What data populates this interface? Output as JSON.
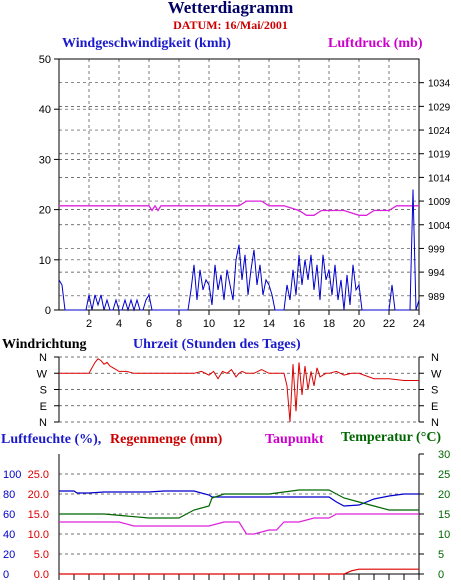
{
  "header": {
    "title": "Wetterdiagramm",
    "date": "DATUM: 16/Mai/2001"
  },
  "labels": {
    "wind": "Windgeschwindigkeit (kmh)",
    "pressure": "Luftdruck (mb)",
    "direction": "Windrichtung",
    "hours": "Uhrzeit (Stunden des Tages)",
    "humidity": "Luftfeuchte (%),",
    "rain": "Regenmenge (mm)",
    "dewpoint": "Taupunkt",
    "temperature": "Temperatur (°C)"
  },
  "colors": {
    "wind": "#0000cc",
    "pressure": "#dd22dd",
    "direction": "#dd0000",
    "humidity": "#0000cc",
    "rain": "#dd0000",
    "dewpoint": "#dd22dd",
    "temperature": "#006600"
  },
  "chart_data": [
    {
      "type": "line",
      "name": "wind_pressure",
      "x_ticks": [
        2,
        4,
        6,
        8,
        10,
        12,
        14,
        16,
        18,
        20,
        22,
        24
      ],
      "xlim": [
        0,
        24
      ],
      "y_left": {
        "lim": [
          0,
          50
        ],
        "ticks": [
          0,
          10,
          20,
          30,
          40,
          50
        ]
      },
      "y_right": {
        "lim": [
          986,
          1039
        ],
        "ticks": [
          989,
          994,
          999,
          1004,
          1009,
          1014,
          1019,
          1024,
          1029,
          1034
        ]
      },
      "grid": true,
      "series": [
        {
          "axis": "left",
          "x": [
            0,
            0.2,
            0.4,
            0.6,
            0.8,
            1,
            1.2,
            1.4,
            1.6,
            1.8,
            2,
            2.2,
            2.4,
            2.6,
            2.8,
            3,
            3.2,
            3.4,
            3.6,
            3.8,
            4,
            4.2,
            4.4,
            4.6,
            4.8,
            5,
            5.2,
            5.4,
            5.6,
            5.8,
            6,
            6.2,
            6.4,
            6.6,
            6.8,
            7,
            7.2,
            7.4,
            7.6,
            7.8,
            8,
            8.2,
            8.4,
            8.6,
            8.8,
            9,
            9.2,
            9.4,
            9.6,
            9.8,
            10,
            10.2,
            10.4,
            10.6,
            10.8,
            11,
            11.2,
            11.4,
            11.6,
            11.8,
            12,
            12.2,
            12.4,
            12.6,
            12.8,
            13,
            13.2,
            13.4,
            13.6,
            13.8,
            14,
            14.2,
            14.4,
            14.6,
            14.8,
            15,
            15.2,
            15.4,
            15.6,
            15.8,
            16,
            16.2,
            16.4,
            16.6,
            16.8,
            17,
            17.2,
            17.4,
            17.6,
            17.8,
            18,
            18.2,
            18.4,
            18.6,
            18.8,
            19,
            19.2,
            19.4,
            19.6,
            19.8,
            20,
            20.2,
            20.4,
            20.6,
            20.8,
            21,
            21.2,
            21.4,
            21.6,
            21.8,
            22,
            22.2,
            22.4,
            22.6,
            22.8,
            23,
            23.2,
            23.4,
            23.5,
            23.6,
            23.8,
            24
          ],
          "values": [
            6,
            5,
            0,
            0,
            0,
            0,
            0,
            0,
            0,
            0,
            3,
            0,
            3,
            1,
            3,
            0,
            2,
            0,
            0,
            2,
            0,
            0,
            2,
            0,
            2,
            0,
            2,
            0,
            0,
            2,
            3,
            0,
            0,
            0,
            0,
            0,
            0,
            0,
            0,
            0,
            0,
            0,
            0,
            0,
            4,
            9,
            2,
            8,
            4,
            6,
            5,
            1,
            9,
            4,
            7,
            2,
            8,
            5,
            2,
            10,
            13,
            6,
            11,
            3,
            8,
            12,
            5,
            9,
            3,
            6,
            5,
            3,
            0,
            0,
            0,
            0,
            5,
            2,
            8,
            3,
            11,
            5,
            10,
            6,
            11,
            4,
            9,
            2,
            11,
            6,
            8,
            3,
            9,
            2,
            6,
            0,
            7,
            1,
            9,
            4,
            5,
            0,
            0,
            0,
            0,
            0,
            0,
            0,
            0,
            0,
            0,
            5,
            0,
            0,
            0,
            0,
            0,
            0,
            12,
            24,
            0,
            2
          ]
        },
        {
          "axis": "right",
          "x": [
            0,
            6,
            6.2,
            6.4,
            6.6,
            6.8,
            10,
            12,
            12.5,
            13.5,
            14,
            15,
            16,
            16.5,
            17,
            17.5,
            18,
            19,
            20,
            20.5,
            21,
            22,
            22.5,
            24
          ],
          "values": [
            1008,
            1008,
            1007,
            1008,
            1007,
            1008,
            1008,
            1008,
            1009,
            1009,
            1008,
            1008,
            1007,
            1006,
            1006,
            1007,
            1007,
            1007,
            1006,
            1006,
            1007,
            1007,
            1008,
            1008
          ]
        }
      ]
    },
    {
      "type": "line",
      "name": "wind_direction",
      "y_ticks": [
        "N",
        "W",
        "S",
        "E",
        "N"
      ],
      "xlim": [
        0,
        24
      ],
      "grid": true,
      "series": [
        {
          "x": [
            0,
            0.3,
            0.5,
            1,
            1.5,
            2,
            2.2,
            2.4,
            2.6,
            2.8,
            3,
            3.2,
            3.4,
            3.6,
            3.8,
            4,
            4.5,
            5,
            5.5,
            6,
            8,
            9,
            9.5,
            10,
            10.3,
            10.6,
            10.9,
            11.2,
            11.5,
            11.8,
            12,
            12.2,
            12.5,
            13,
            13.5,
            14,
            14.5,
            15,
            15.2,
            15.4,
            15.6,
            15.8,
            16,
            16.2,
            16.4,
            16.6,
            16.8,
            17,
            17.2,
            17.4,
            17.6,
            17.8,
            18,
            18.5,
            19,
            19.5,
            20,
            21,
            22,
            23,
            24
          ],
          "values": [
            270,
            270,
            270,
            270,
            270,
            270,
            300,
            330,
            350,
            340,
            320,
            330,
            310,
            300,
            290,
            280,
            280,
            270,
            270,
            270,
            270,
            270,
            280,
            260,
            280,
            240,
            280,
            270,
            290,
            250,
            270,
            280,
            270,
            270,
            290,
            270,
            270,
            270,
            200,
            0,
            320,
            60,
            330,
            150,
            310,
            180,
            280,
            200,
            300,
            250,
            260,
            270,
            270,
            280,
            260,
            270,
            270,
            240,
            240,
            230,
            230
          ]
        }
      ]
    },
    {
      "type": "line",
      "name": "humidity_rain_dewpoint_temperature",
      "y_left_outer": {
        "label": "Luftfeuchte (%)",
        "ticks": [
          0,
          20,
          40,
          60,
          80,
          100
        ]
      },
      "y_left_inner": {
        "label": "Regenmenge (mm)",
        "ticks": [
          "0.0",
          "5.0",
          "10.0",
          "15.0",
          "20.0",
          "25.0"
        ]
      },
      "y_right": {
        "label": "Temperatur (°C)",
        "ticks": [
          0,
          5,
          10,
          15,
          20,
          25,
          30
        ]
      },
      "xlim": [
        0,
        24
      ],
      "grid": true,
      "series": [
        {
          "color_key": "humidity",
          "x": [
            0,
            1,
            1.2,
            2,
            3,
            4,
            5,
            6,
            7,
            8,
            9,
            10,
            10.2,
            11,
            12,
            13,
            14,
            15,
            16,
            17,
            18,
            18.5,
            19,
            20,
            21,
            22,
            23,
            24
          ],
          "values": [
            83,
            83,
            81,
            81,
            82,
            82,
            82,
            82,
            83,
            83,
            83,
            79,
            77,
            77,
            77,
            77,
            77,
            77,
            77,
            77,
            77,
            72,
            68,
            69,
            75,
            78,
            80,
            80
          ]
        },
        {
          "color_key": "temperature",
          "x": [
            0,
            3,
            6,
            7,
            8,
            8.5,
            9,
            10,
            10.2,
            11,
            12,
            14,
            16,
            18,
            18.5,
            19,
            20,
            21,
            22,
            23,
            24
          ],
          "values": [
            15,
            15,
            14,
            14,
            14,
            15,
            16,
            17,
            19,
            20,
            20,
            20,
            21,
            21,
            20,
            19,
            18,
            17,
            16,
            16,
            16
          ]
        },
        {
          "color_key": "dewpoint",
          "x": [
            0,
            1,
            2,
            4,
            5,
            6,
            7,
            8,
            9,
            10,
            11,
            12,
            12.5,
            13,
            14,
            14.5,
            15,
            16,
            17,
            18,
            18.5,
            19,
            20,
            21,
            22,
            23,
            24
          ],
          "values": [
            13,
            13,
            13,
            13,
            12,
            12,
            12,
            12,
            12,
            12,
            13,
            13,
            10,
            10,
            11,
            11,
            13,
            13,
            14,
            14,
            15,
            15,
            15,
            15,
            15,
            15,
            15
          ]
        },
        {
          "color_key": "rain",
          "x": [
            0,
            19,
            19.5,
            20,
            22,
            24
          ],
          "values": [
            0,
            0,
            0.8,
            1.2,
            1.2,
            1.2
          ]
        }
      ]
    }
  ]
}
